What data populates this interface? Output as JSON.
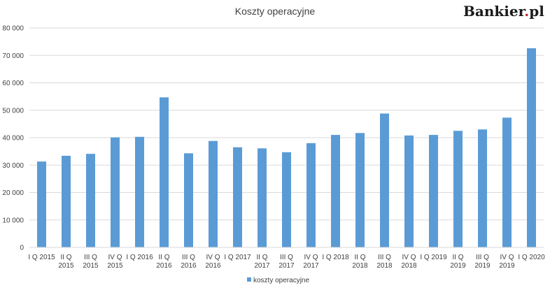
{
  "brand": {
    "text_main": "Bankier",
    "text_dot": ".",
    "text_tld": "pl",
    "accent_color": "#c62828"
  },
  "chart_data": {
    "type": "bar",
    "title": "Koszty operacyjne",
    "xlabel": "",
    "ylabel": "",
    "categories": [
      [
        "I Q 2015"
      ],
      [
        "II Q",
        "2015"
      ],
      [
        "III Q",
        "2015"
      ],
      [
        "IV Q",
        "2015"
      ],
      [
        "I Q 2016"
      ],
      [
        "II Q",
        "2016"
      ],
      [
        "III Q",
        "2016"
      ],
      [
        "IV Q",
        "2016"
      ],
      [
        "I Q 2017"
      ],
      [
        "II Q",
        "2017"
      ],
      [
        "III Q",
        "2017"
      ],
      [
        "IV Q",
        "2017"
      ],
      [
        "I Q 2018"
      ],
      [
        "II Q",
        "2018"
      ],
      [
        "III Q",
        "2018"
      ],
      [
        "IV Q",
        "2018"
      ],
      [
        "I Q 2019"
      ],
      [
        "II Q",
        "2019"
      ],
      [
        "III Q",
        "2019"
      ],
      [
        "IV Q",
        "2019"
      ],
      [
        "I Q 2020"
      ]
    ],
    "series": [
      {
        "name": "koszty operacyjne",
        "color": "#5b9bd5",
        "values": [
          31300,
          33400,
          34100,
          40100,
          40300,
          54700,
          34300,
          38800,
          36500,
          36100,
          34700,
          38000,
          41000,
          41700,
          48800,
          40800,
          41000,
          42500,
          43000,
          47300,
          72600
        ]
      }
    ],
    "ylim": [
      0,
      80000
    ],
    "yticks": [
      0,
      10000,
      20000,
      30000,
      40000,
      50000,
      60000,
      70000,
      80000
    ],
    "ytick_labels": [
      "0",
      "10 000",
      "20 000",
      "30 000",
      "40 000",
      "50 000",
      "60 000",
      "70 000",
      "80 000"
    ],
    "grid": true,
    "grid_color": "#d9d9d9",
    "legend_position": "bottom"
  }
}
